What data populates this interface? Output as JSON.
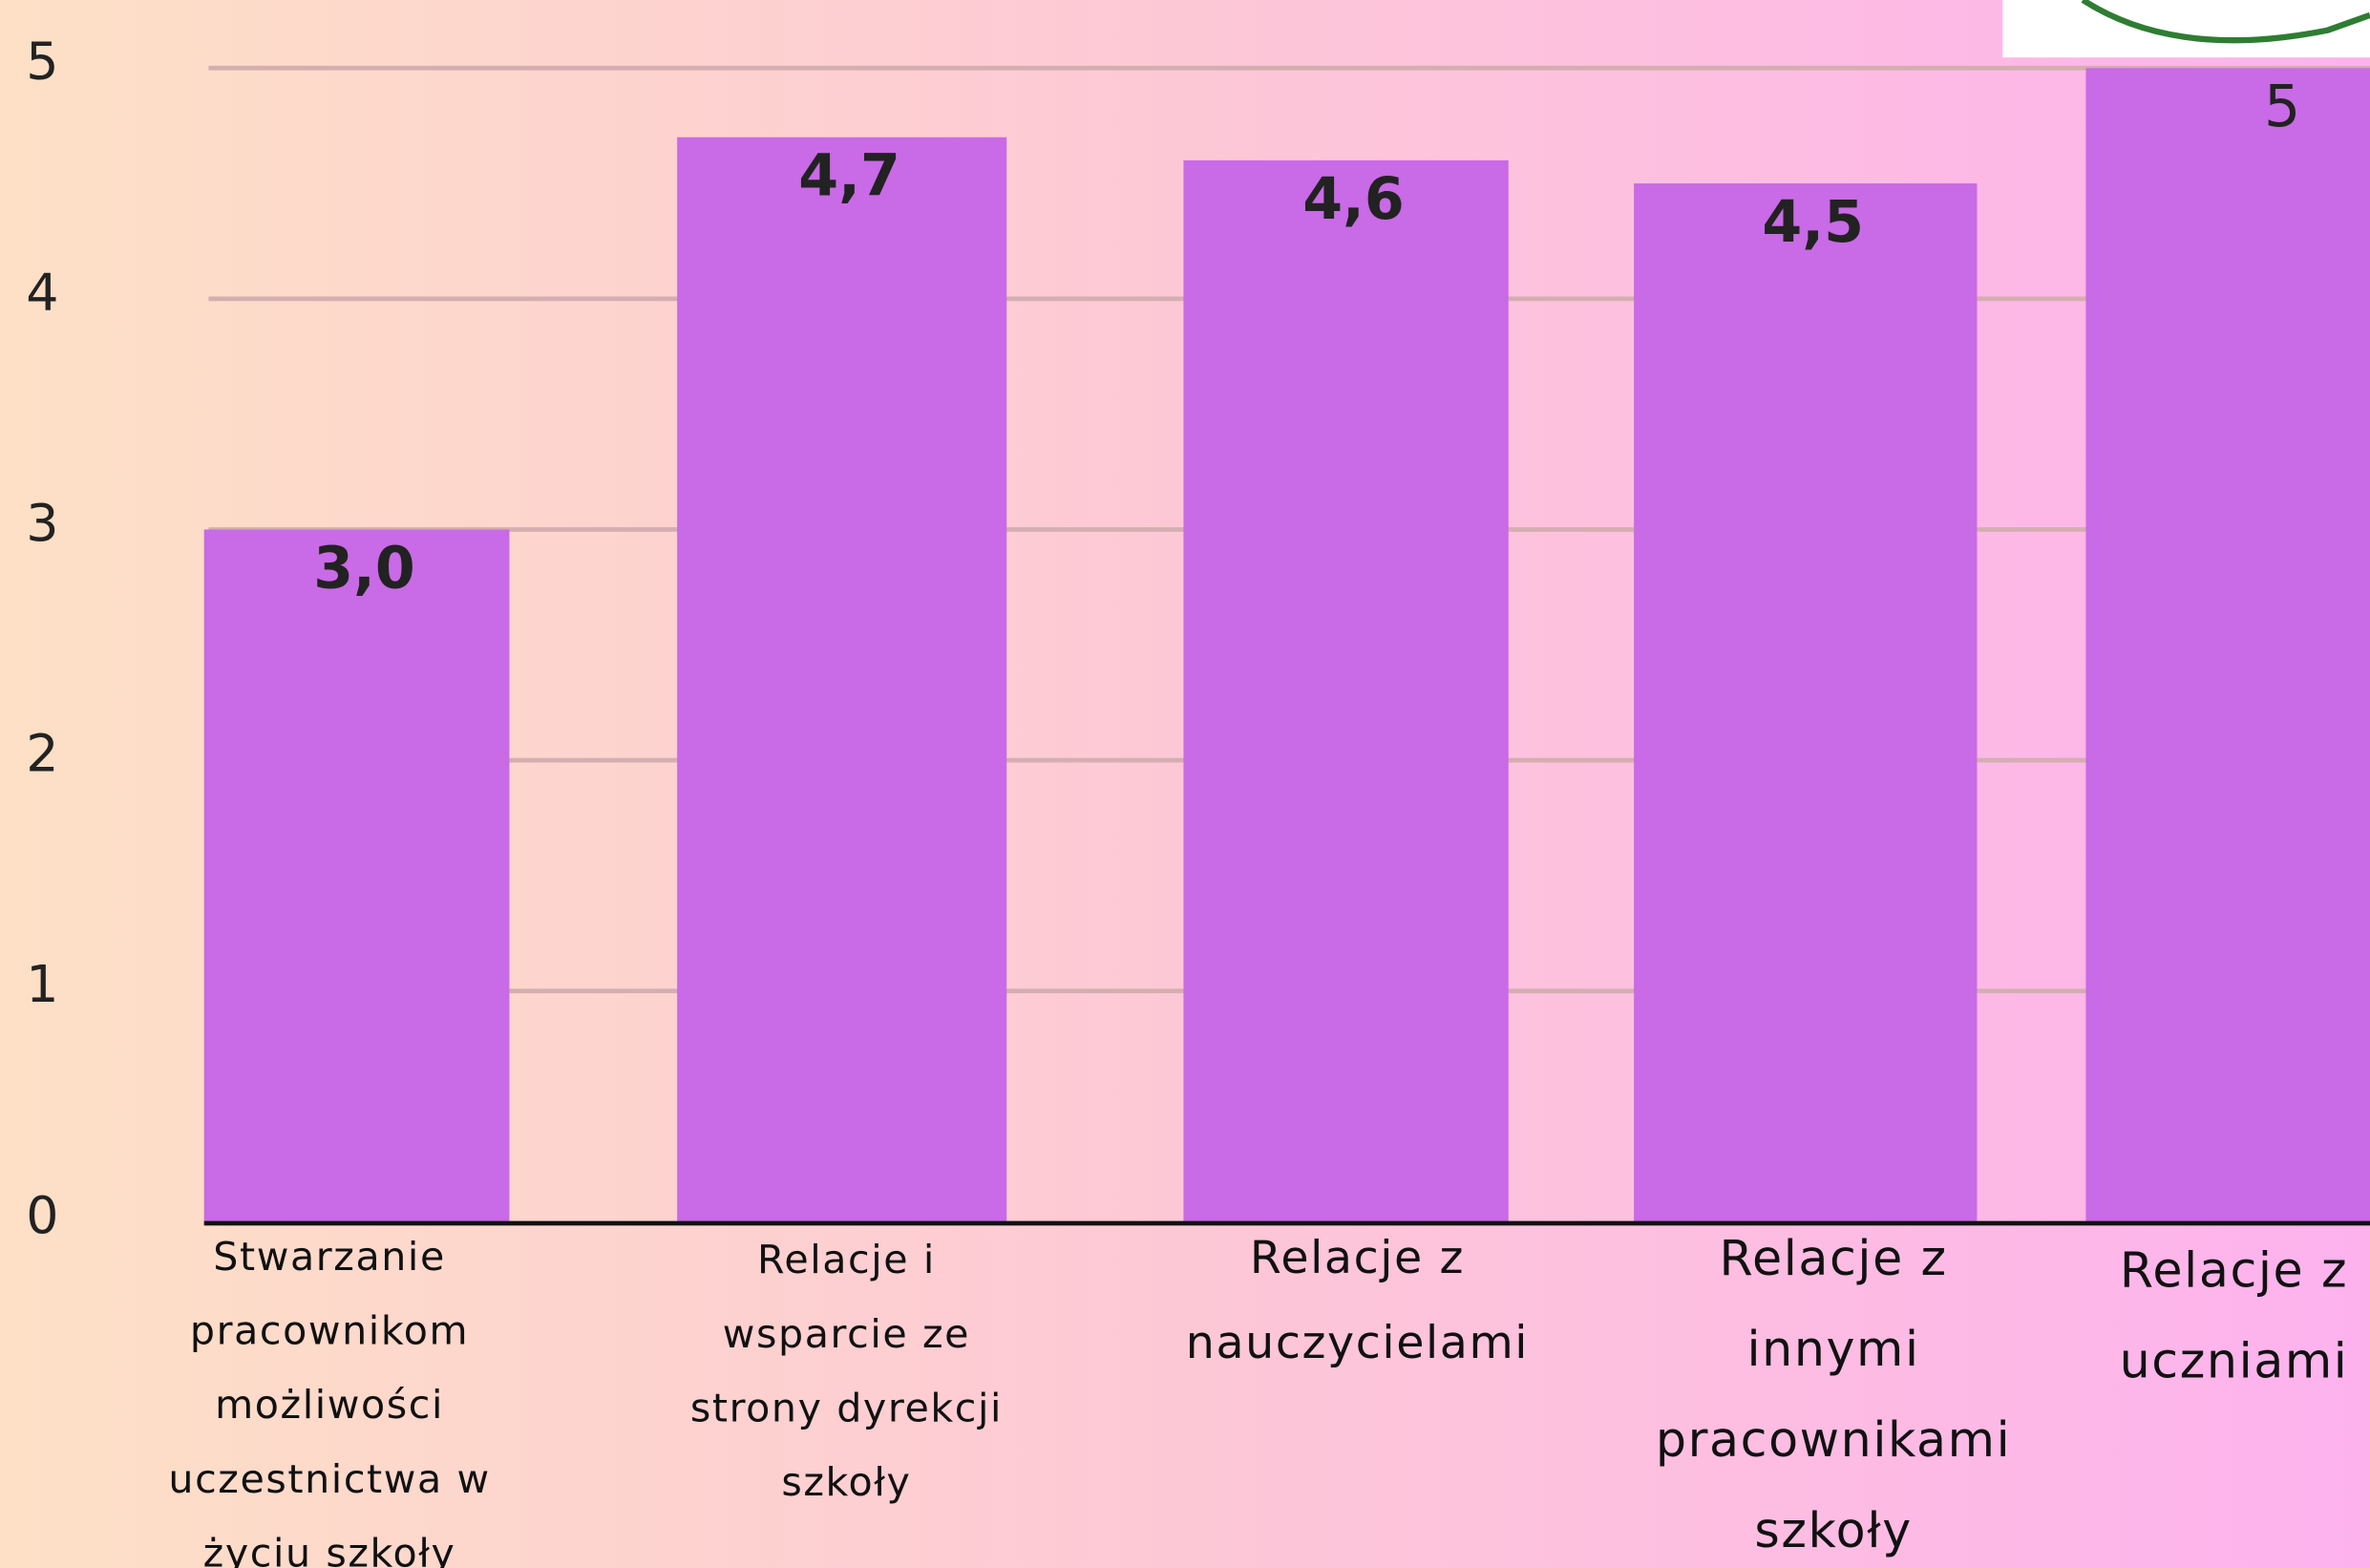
{
  "chart_data": {
    "type": "bar",
    "categories": [
      "Stwarzanie pracownikom możliwości uczestnictwa w życiu szkoły",
      "Relacje i wsparcie ze strony dyrekcji szkoły",
      "Relacje z nauczycielami",
      "Relacje z innymi pracownikami szkoły",
      "Relacje z uczniami"
    ],
    "values": [
      3.0,
      4.7,
      4.6,
      4.5,
      5
    ],
    "value_labels": [
      "3,0",
      "4,7",
      "4,6",
      "4,5",
      "5"
    ],
    "color": "#c96ae6",
    "ylim": [
      0,
      5
    ],
    "yticks": [
      0,
      1,
      2,
      3,
      4,
      5
    ],
    "grid": true
  }
}
